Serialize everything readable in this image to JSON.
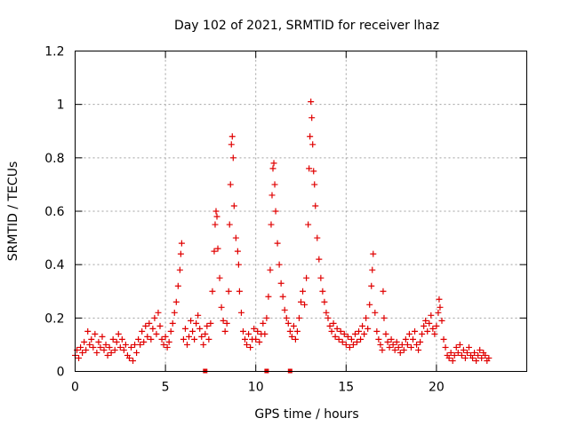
{
  "chart_data": {
    "type": "scatter",
    "title": "Day 102 of 2021, SRMTID for receiver lhaz",
    "xlabel": "GPS time / hours",
    "ylabel": "SRMTID / TECUs",
    "xlim": [
      0,
      25
    ],
    "ylim": [
      0,
      1.2
    ],
    "xticks": [
      0,
      5,
      10,
      15,
      20
    ],
    "xtick_labels": [
      "0",
      "5",
      "10",
      "15",
      "20"
    ],
    "yticks": [
      0,
      0.2,
      0.4,
      0.6,
      0.8,
      1.0,
      1.2
    ],
    "ytick_labels": [
      "0",
      "0.2",
      "0.4",
      "0.6",
      "0.8",
      "1",
      "1.2"
    ],
    "grid": true,
    "marker": "+",
    "series": [
      {
        "name": "SRMTID",
        "color": "#e00000",
        "points": [
          [
            0.0,
            0.06
          ],
          [
            0.1,
            0.08
          ],
          [
            0.2,
            0.05
          ],
          [
            0.3,
            0.09
          ],
          [
            0.4,
            0.07
          ],
          [
            0.5,
            0.11
          ],
          [
            0.6,
            0.08
          ],
          [
            0.7,
            0.15
          ],
          [
            0.8,
            0.1
          ],
          [
            0.9,
            0.12
          ],
          [
            1.0,
            0.09
          ],
          [
            1.1,
            0.14
          ],
          [
            1.2,
            0.07
          ],
          [
            1.3,
            0.11
          ],
          [
            1.4,
            0.09
          ],
          [
            1.5,
            0.13
          ],
          [
            1.6,
            0.08
          ],
          [
            1.7,
            0.1
          ],
          [
            1.8,
            0.06
          ],
          [
            1.9,
            0.09
          ],
          [
            2.0,
            0.07
          ],
          [
            2.1,
            0.12
          ],
          [
            2.2,
            0.08
          ],
          [
            2.3,
            0.11
          ],
          [
            2.4,
            0.14
          ],
          [
            2.5,
            0.09
          ],
          [
            2.6,
            0.12
          ],
          [
            2.7,
            0.08
          ],
          [
            2.8,
            0.1
          ],
          [
            2.9,
            0.06
          ],
          [
            3.0,
            0.05
          ],
          [
            3.1,
            0.09
          ],
          [
            3.2,
            0.04
          ],
          [
            3.3,
            0.1
          ],
          [
            3.4,
            0.07
          ],
          [
            3.5,
            0.12
          ],
          [
            3.6,
            0.1
          ],
          [
            3.7,
            0.15
          ],
          [
            3.8,
            0.11
          ],
          [
            3.9,
            0.17
          ],
          [
            4.0,
            0.13
          ],
          [
            4.1,
            0.18
          ],
          [
            4.2,
            0.12
          ],
          [
            4.3,
            0.16
          ],
          [
            4.4,
            0.2
          ],
          [
            4.5,
            0.14
          ],
          [
            4.6,
            0.22
          ],
          [
            4.7,
            0.17
          ],
          [
            4.8,
            0.12
          ],
          [
            4.9,
            0.1
          ],
          [
            5.0,
            0.13
          ],
          [
            5.1,
            0.09
          ],
          [
            5.2,
            0.11
          ],
          [
            5.3,
            0.15
          ],
          [
            5.4,
            0.18
          ],
          [
            5.5,
            0.22
          ],
          [
            5.6,
            0.26
          ],
          [
            5.7,
            0.32
          ],
          [
            5.8,
            0.38
          ],
          [
            5.85,
            0.44
          ],
          [
            5.9,
            0.48
          ],
          [
            6.0,
            0.12
          ],
          [
            6.1,
            0.16
          ],
          [
            6.2,
            0.1
          ],
          [
            6.3,
            0.13
          ],
          [
            6.4,
            0.19
          ],
          [
            6.5,
            0.15
          ],
          [
            6.6,
            0.12
          ],
          [
            6.7,
            0.18
          ],
          [
            6.8,
            0.21
          ],
          [
            6.9,
            0.16
          ],
          [
            7.0,
            0.13
          ],
          [
            7.1,
            0.1
          ],
          [
            7.2,
            0.14
          ],
          [
            7.3,
            0.17
          ],
          [
            7.4,
            0.12
          ],
          [
            7.5,
            0.18
          ],
          [
            7.6,
            0.3
          ],
          [
            7.7,
            0.45
          ],
          [
            7.75,
            0.55
          ],
          [
            7.8,
            0.6
          ],
          [
            7.85,
            0.58
          ],
          [
            7.9,
            0.46
          ],
          [
            8.0,
            0.35
          ],
          [
            8.1,
            0.24
          ],
          [
            8.2,
            0.19
          ],
          [
            8.3,
            0.15
          ],
          [
            8.4,
            0.18
          ],
          [
            8.5,
            0.3
          ],
          [
            8.55,
            0.55
          ],
          [
            8.6,
            0.7
          ],
          [
            8.65,
            0.85
          ],
          [
            8.7,
            0.88
          ],
          [
            8.75,
            0.8
          ],
          [
            8.8,
            0.62
          ],
          [
            8.9,
            0.5
          ],
          [
            9.0,
            0.45
          ],
          [
            9.05,
            0.4
          ],
          [
            9.1,
            0.3
          ],
          [
            9.2,
            0.22
          ],
          [
            9.3,
            0.15
          ],
          [
            9.4,
            0.12
          ],
          [
            9.5,
            0.1
          ],
          [
            9.6,
            0.14
          ],
          [
            9.7,
            0.09
          ],
          [
            9.8,
            0.12
          ],
          [
            9.9,
            0.16
          ],
          [
            10.0,
            0.12
          ],
          [
            10.1,
            0.15
          ],
          [
            10.2,
            0.11
          ],
          [
            10.3,
            0.14
          ],
          [
            10.4,
            0.18
          ],
          [
            10.5,
            0.14
          ],
          [
            10.6,
            0.2
          ],
          [
            10.7,
            0.28
          ],
          [
            10.8,
            0.38
          ],
          [
            10.85,
            0.55
          ],
          [
            10.9,
            0.66
          ],
          [
            10.95,
            0.76
          ],
          [
            11.0,
            0.78
          ],
          [
            11.05,
            0.7
          ],
          [
            11.1,
            0.6
          ],
          [
            11.2,
            0.48
          ],
          [
            11.3,
            0.4
          ],
          [
            11.4,
            0.33
          ],
          [
            11.5,
            0.28
          ],
          [
            11.6,
            0.23
          ],
          [
            11.7,
            0.2
          ],
          [
            11.8,
            0.18
          ],
          [
            11.9,
            0.15
          ],
          [
            12.0,
            0.13
          ],
          [
            12.1,
            0.17
          ],
          [
            12.2,
            0.12
          ],
          [
            12.3,
            0.15
          ],
          [
            12.4,
            0.2
          ],
          [
            12.5,
            0.26
          ],
          [
            12.6,
            0.3
          ],
          [
            12.7,
            0.25
          ],
          [
            12.8,
            0.35
          ],
          [
            12.9,
            0.55
          ],
          [
            12.95,
            0.76
          ],
          [
            13.0,
            0.88
          ],
          [
            13.05,
            1.01
          ],
          [
            13.1,
            0.95
          ],
          [
            13.15,
            0.85
          ],
          [
            13.2,
            0.75
          ],
          [
            13.25,
            0.7
          ],
          [
            13.3,
            0.62
          ],
          [
            13.4,
            0.5
          ],
          [
            13.5,
            0.42
          ],
          [
            13.6,
            0.35
          ],
          [
            13.7,
            0.3
          ],
          [
            13.8,
            0.26
          ],
          [
            13.9,
            0.22
          ],
          [
            14.0,
            0.2
          ],
          [
            14.1,
            0.17
          ],
          [
            14.2,
            0.15
          ],
          [
            14.3,
            0.18
          ],
          [
            14.4,
            0.13
          ],
          [
            14.5,
            0.16
          ],
          [
            14.6,
            0.12
          ],
          [
            14.7,
            0.15
          ],
          [
            14.8,
            0.11
          ],
          [
            14.9,
            0.14
          ],
          [
            15.0,
            0.1
          ],
          [
            15.1,
            0.13
          ],
          [
            15.2,
            0.09
          ],
          [
            15.3,
            0.12
          ],
          [
            15.4,
            0.1
          ],
          [
            15.5,
            0.14
          ],
          [
            15.6,
            0.11
          ],
          [
            15.7,
            0.15
          ],
          [
            15.8,
            0.12
          ],
          [
            15.9,
            0.17
          ],
          [
            16.0,
            0.14
          ],
          [
            16.1,
            0.2
          ],
          [
            16.2,
            0.16
          ],
          [
            16.3,
            0.25
          ],
          [
            16.4,
            0.32
          ],
          [
            16.45,
            0.38
          ],
          [
            16.5,
            0.44
          ],
          [
            16.6,
            0.22
          ],
          [
            16.7,
            0.15
          ],
          [
            16.8,
            0.12
          ],
          [
            16.9,
            0.1
          ],
          [
            17.0,
            0.08
          ],
          [
            17.05,
            0.3
          ],
          [
            17.1,
            0.2
          ],
          [
            17.2,
            0.14
          ],
          [
            17.3,
            0.11
          ],
          [
            17.4,
            0.09
          ],
          [
            17.5,
            0.12
          ],
          [
            17.6,
            0.1
          ],
          [
            17.7,
            0.08
          ],
          [
            17.8,
            0.11
          ],
          [
            17.9,
            0.09
          ],
          [
            18.0,
            0.07
          ],
          [
            18.1,
            0.1
          ],
          [
            18.2,
            0.08
          ],
          [
            18.3,
            0.12
          ],
          [
            18.4,
            0.1
          ],
          [
            18.5,
            0.14
          ],
          [
            18.6,
            0.09
          ],
          [
            18.7,
            0.12
          ],
          [
            18.8,
            0.15
          ],
          [
            18.9,
            0.1
          ],
          [
            19.0,
            0.08
          ],
          [
            19.1,
            0.11
          ],
          [
            19.2,
            0.14
          ],
          [
            19.3,
            0.17
          ],
          [
            19.4,
            0.19
          ],
          [
            19.5,
            0.15
          ],
          [
            19.6,
            0.18
          ],
          [
            19.7,
            0.21
          ],
          [
            19.8,
            0.16
          ],
          [
            19.9,
            0.14
          ],
          [
            20.0,
            0.17
          ],
          [
            20.1,
            0.22
          ],
          [
            20.15,
            0.27
          ],
          [
            20.2,
            0.24
          ],
          [
            20.3,
            0.19
          ],
          [
            20.4,
            0.12
          ],
          [
            20.5,
            0.09
          ],
          [
            20.6,
            0.06
          ],
          [
            20.7,
            0.05
          ],
          [
            20.8,
            0.07
          ],
          [
            20.9,
            0.04
          ],
          [
            21.0,
            0.06
          ],
          [
            21.1,
            0.09
          ],
          [
            21.2,
            0.07
          ],
          [
            21.3,
            0.1
          ],
          [
            21.4,
            0.06
          ],
          [
            21.5,
            0.08
          ],
          [
            21.6,
            0.05
          ],
          [
            21.7,
            0.07
          ],
          [
            21.8,
            0.09
          ],
          [
            21.9,
            0.06
          ],
          [
            22.0,
            0.05
          ],
          [
            22.1,
            0.07
          ],
          [
            22.2,
            0.04
          ],
          [
            22.3,
            0.06
          ],
          [
            22.4,
            0.08
          ],
          [
            22.5,
            0.05
          ],
          [
            22.6,
            0.07
          ],
          [
            22.7,
            0.06
          ],
          [
            22.8,
            0.04
          ],
          [
            22.9,
            0.05
          ]
        ]
      }
    ],
    "gap_markers": [
      7.2,
      10.6,
      11.9
    ]
  }
}
